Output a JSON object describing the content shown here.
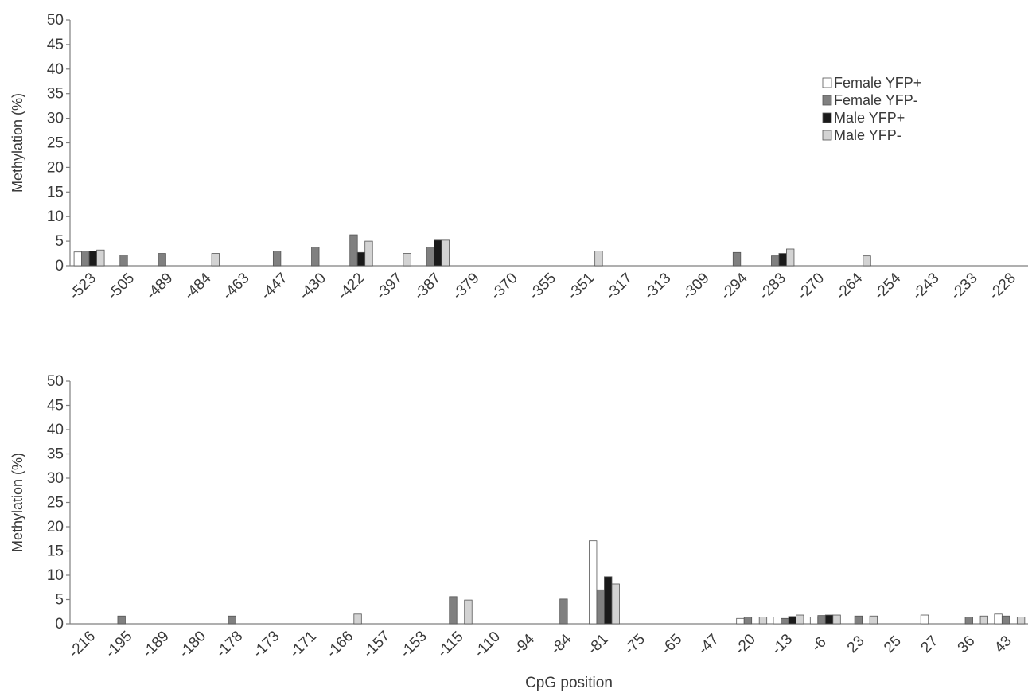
{
  "chart_data": [
    {
      "type": "bar",
      "ylabel": "Methylation (%)",
      "xlabel": "",
      "ylim": [
        0,
        50
      ],
      "yticks": [
        0,
        5,
        10,
        15,
        20,
        25,
        30,
        35,
        40,
        45,
        50
      ],
      "grid": false,
      "legend_position": "top-right",
      "categories": [
        "-523",
        "-505",
        "-489",
        "-484",
        "-463",
        "-447",
        "-430",
        "-422",
        "-397",
        "-387",
        "-379",
        "-370",
        "-355",
        "-351",
        "-317",
        "-313",
        "-309",
        "-294",
        "-283",
        "-270",
        "-264",
        "-254",
        "-243",
        "-233",
        "-228"
      ],
      "series": [
        {
          "name": "Female YFP+",
          "color": "#ffffff",
          "values": [
            2.8,
            0,
            0,
            0,
            0,
            0,
            0,
            0,
            0,
            0,
            0,
            0,
            0,
            0,
            0,
            0,
            0,
            0,
            0,
            0,
            0,
            0,
            0,
            0,
            0
          ]
        },
        {
          "name": "Female YFP-",
          "color": "#808080",
          "values": [
            3.0,
            2.2,
            2.5,
            0,
            0,
            3.0,
            3.8,
            6.3,
            0,
            3.8,
            0,
            0,
            0,
            0,
            0,
            0,
            0,
            2.7,
            2.0,
            0,
            0,
            0,
            0,
            0,
            0
          ]
        },
        {
          "name": "Male YFP+",
          "color": "#1a1a1a",
          "values": [
            3.0,
            0,
            0,
            0,
            0,
            0,
            0,
            2.7,
            0,
            5.2,
            0,
            0,
            0,
            0,
            0,
            0,
            0,
            0,
            2.5,
            0,
            0,
            0,
            0,
            0,
            0
          ]
        },
        {
          "name": "Male YFP-",
          "color": "#d3d3d3",
          "values": [
            3.2,
            0,
            0,
            2.5,
            0,
            0,
            0,
            5.0,
            2.5,
            5.2,
            0,
            0,
            0,
            3.0,
            0,
            0,
            0,
            0,
            3.4,
            0,
            2.0,
            0,
            0,
            0,
            0
          ]
        }
      ]
    },
    {
      "type": "bar",
      "ylabel": "Methylation (%)",
      "xlabel": "CpG position",
      "ylim": [
        0,
        50
      ],
      "yticks": [
        0,
        5,
        10,
        15,
        20,
        25,
        30,
        35,
        40,
        45,
        50
      ],
      "grid": false,
      "categories": [
        "-216",
        "-195",
        "-189",
        "-180",
        "-178",
        "-173",
        "-171",
        "-166",
        "-157",
        "-153",
        "-115",
        "-110",
        "-94",
        "-84",
        "-81",
        "-75",
        "-65",
        "-47",
        "-20",
        "-13",
        "-6",
        "23",
        "25",
        "27",
        "36",
        "43"
      ],
      "series": [
        {
          "name": "Female YFP+",
          "color": "#ffffff",
          "values": [
            0,
            0,
            0,
            0,
            0,
            0,
            0,
            0,
            0,
            0,
            0,
            0,
            0,
            0,
            17.1,
            0,
            0,
            0,
            1.1,
            1.4,
            1.4,
            0,
            0,
            1.8,
            0,
            2.0
          ]
        },
        {
          "name": "Female YFP-",
          "color": "#808080",
          "values": [
            0,
            1.6,
            0,
            0,
            1.6,
            0,
            0,
            0,
            0,
            0,
            5.6,
            0,
            0,
            5.1,
            7.0,
            0,
            0,
            0,
            1.4,
            1.1,
            1.7,
            1.6,
            0,
            0,
            1.4,
            1.6
          ]
        },
        {
          "name": "Male YFP+",
          "color": "#1a1a1a",
          "values": [
            0,
            0,
            0,
            0,
            0,
            0,
            0,
            0,
            0,
            0,
            0,
            0,
            0,
            0,
            9.7,
            0,
            0,
            0,
            0,
            1.5,
            1.8,
            0,
            0,
            0,
            0,
            0
          ]
        },
        {
          "name": "Male YFP-",
          "color": "#d3d3d3",
          "values": [
            0,
            0,
            0,
            0,
            0,
            0,
            0,
            2.0,
            0,
            0,
            4.9,
            0,
            0,
            0,
            8.2,
            0,
            0,
            0,
            1.4,
            1.8,
            1.8,
            1.6,
            0,
            0,
            1.6,
            1.4
          ]
        }
      ]
    }
  ]
}
